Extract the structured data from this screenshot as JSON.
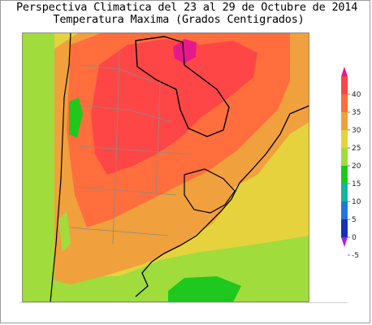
{
  "title": {
    "line1": "Perspectiva Climatica del 23 al 29 de Octubre de 2014",
    "line2": "Temperatura Maxima (Grados Centigrados)"
  },
  "legend": {
    "ticks": [
      "40",
      "35",
      "30",
      "25",
      "20",
      "15",
      "10",
      "5",
      "0",
      "-5"
    ],
    "bands": [
      {
        "range": "> 40",
        "color": "#e6198c"
      },
      {
        "range": "35-40",
        "color": "#ff4646"
      },
      {
        "range": "30-35",
        "color": "#ff6e3c"
      },
      {
        "range": "25-30",
        "color": "#f0a03c"
      },
      {
        "range": "20-25",
        "color": "#e6d23c"
      },
      {
        "range": "15-20",
        "color": "#a0dc3c"
      },
      {
        "range": "10-15",
        "color": "#1ec81e"
      },
      {
        "range": "5-10",
        "color": "#14b4a0"
      },
      {
        "range": "0-5",
        "color": "#1e78dc"
      },
      {
        "range": "-5-0",
        "color": "#1432b4"
      },
      {
        "range": "< -5",
        "color": "#b41ed2"
      }
    ]
  },
  "colors": {
    "ocean": "#f0a03c",
    "border": "#000000",
    "province_lines": "#8a8a8a"
  }
}
